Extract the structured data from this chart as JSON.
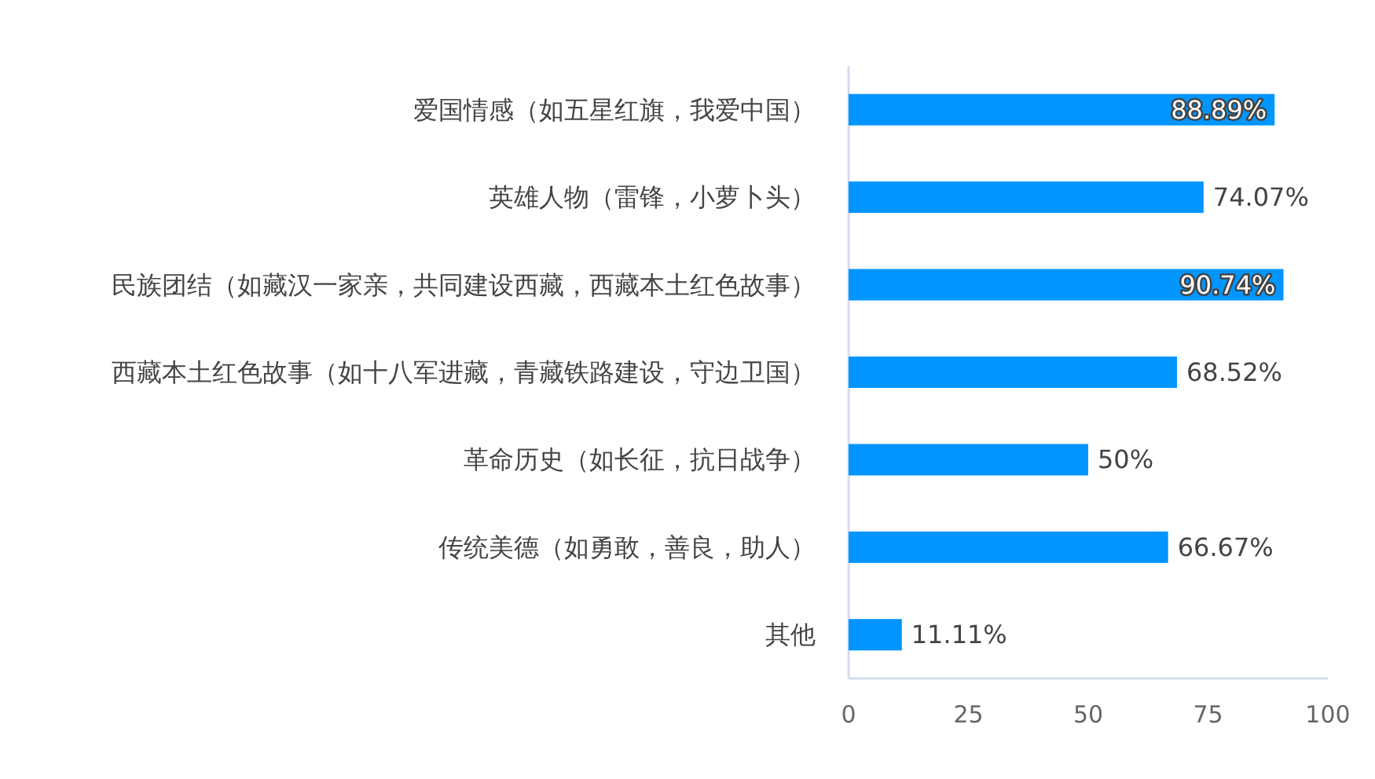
{
  "chart_data": {
    "type": "bar",
    "orientation": "horizontal",
    "categories": [
      "爱国情感（如五星红旗，我爱中国）",
      "英雄人物（雷锋，小萝卜头）",
      "民族团结（如藏汉一家亲，共同建设西藏，西藏本土红色故事）",
      "西藏本土红色故事（如十八军进藏，青藏铁路建设，守边卫国）",
      "革命历史（如长征，抗日战争）",
      "传统美德（如勇敢，善良，助人）",
      "其他"
    ],
    "values": [
      88.89,
      74.07,
      90.74,
      68.52,
      50,
      66.67,
      11.11
    ],
    "value_labels": [
      "88.89%",
      "74.07%",
      "90.74%",
      "68.52%",
      "50%",
      "66.67%",
      "11.11%"
    ],
    "color": "#0095ff",
    "xlim": [
      0,
      100
    ],
    "xticks": [
      0,
      25,
      50,
      75,
      100
    ]
  }
}
